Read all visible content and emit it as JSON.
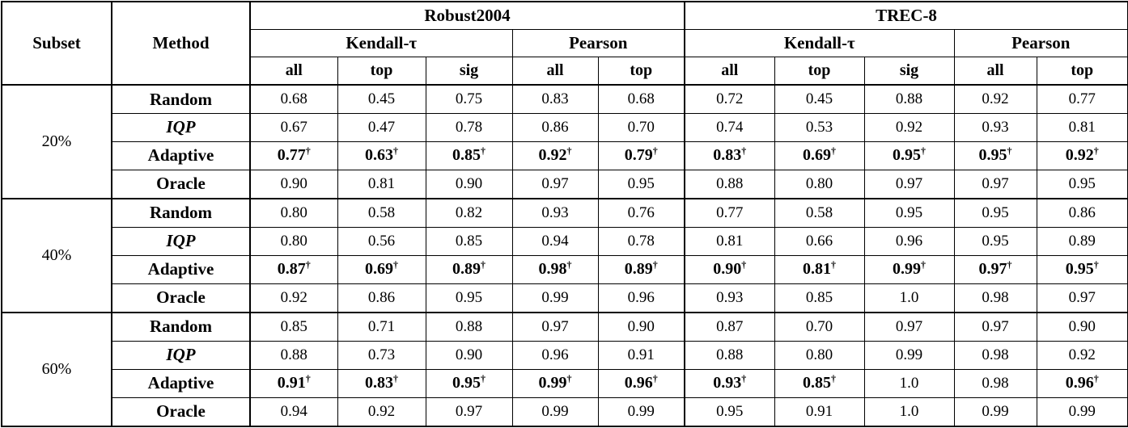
{
  "colors": {
    "background": "#ffffff",
    "border": "#000000",
    "text": "#000000"
  },
  "header": {
    "subset": "Subset",
    "method": "Method",
    "groups": [
      {
        "label": "Robust2004"
      },
      {
        "label": "TREC-8"
      }
    ],
    "subgroups": {
      "kendall": "Kendall-τ",
      "pearson": "Pearson"
    },
    "cols": [
      "all",
      "top",
      "sig",
      "all",
      "top",
      "all",
      "top",
      "sig",
      "all",
      "top"
    ]
  },
  "significance_marker": "†",
  "blocks": [
    {
      "subset": "20%",
      "rows": [
        {
          "method": "Random",
          "style": "bold",
          "values": [
            "0.68",
            "0.45",
            "0.75",
            "0.83",
            "0.68",
            "0.72",
            "0.45",
            "0.88",
            "0.92",
            "0.77"
          ]
        },
        {
          "method": "IQP",
          "style": "bold-italic",
          "values": [
            "0.67",
            "0.47",
            "0.78",
            "0.86",
            "0.70",
            "0.74",
            "0.53",
            "0.92",
            "0.93",
            "0.81"
          ]
        },
        {
          "method": "Adaptive",
          "style": "bold",
          "values": [
            "0.77†",
            "0.63†",
            "0.85†",
            "0.92†",
            "0.79†",
            "0.83†",
            "0.69†",
            "0.95†",
            "0.95†",
            "0.92†"
          ]
        },
        {
          "method": "Oracle",
          "style": "bold",
          "values": [
            "0.90",
            "0.81",
            "0.90",
            "0.97",
            "0.95",
            "0.88",
            "0.80",
            "0.97",
            "0.97",
            "0.95"
          ]
        }
      ]
    },
    {
      "subset": "40%",
      "rows": [
        {
          "method": "Random",
          "style": "bold",
          "values": [
            "0.80",
            "0.58",
            "0.82",
            "0.93",
            "0.76",
            "0.77",
            "0.58",
            "0.95",
            "0.95",
            "0.86"
          ]
        },
        {
          "method": "IQP",
          "style": "bold-italic",
          "values": [
            "0.80",
            "0.56",
            "0.85",
            "0.94",
            "0.78",
            "0.81",
            "0.66",
            "0.96",
            "0.95",
            "0.89"
          ]
        },
        {
          "method": "Adaptive",
          "style": "bold",
          "values": [
            "0.87†",
            "0.69†",
            "0.89†",
            "0.98†",
            "0.89†",
            "0.90†",
            "0.81†",
            "0.99†",
            "0.97†",
            "0.95†"
          ]
        },
        {
          "method": "Oracle",
          "style": "bold",
          "values": [
            "0.92",
            "0.86",
            "0.95",
            "0.99",
            "0.96",
            "0.93",
            "0.85",
            "1.0",
            "0.98",
            "0.97"
          ]
        }
      ]
    },
    {
      "subset": "60%",
      "rows": [
        {
          "method": "Random",
          "style": "bold",
          "values": [
            "0.85",
            "0.71",
            "0.88",
            "0.97",
            "0.90",
            "0.87",
            "0.70",
            "0.97",
            "0.97",
            "0.90"
          ]
        },
        {
          "method": "IQP",
          "style": "bold-italic",
          "values": [
            "0.88",
            "0.73",
            "0.90",
            "0.96",
            "0.91",
            "0.88",
            "0.80",
            "0.99",
            "0.98",
            "0.92"
          ]
        },
        {
          "method": "Adaptive",
          "style": "bold",
          "values": [
            "0.91†",
            "0.83†",
            "0.95†",
            "0.99†",
            "0.96†",
            "0.93†",
            "0.85†",
            "1.0",
            "0.98",
            "0.96†"
          ]
        },
        {
          "method": "Oracle",
          "style": "bold",
          "values": [
            "0.94",
            "0.92",
            "0.97",
            "0.99",
            "0.99",
            "0.95",
            "0.91",
            "1.0",
            "0.99",
            "0.99"
          ]
        }
      ]
    }
  ]
}
